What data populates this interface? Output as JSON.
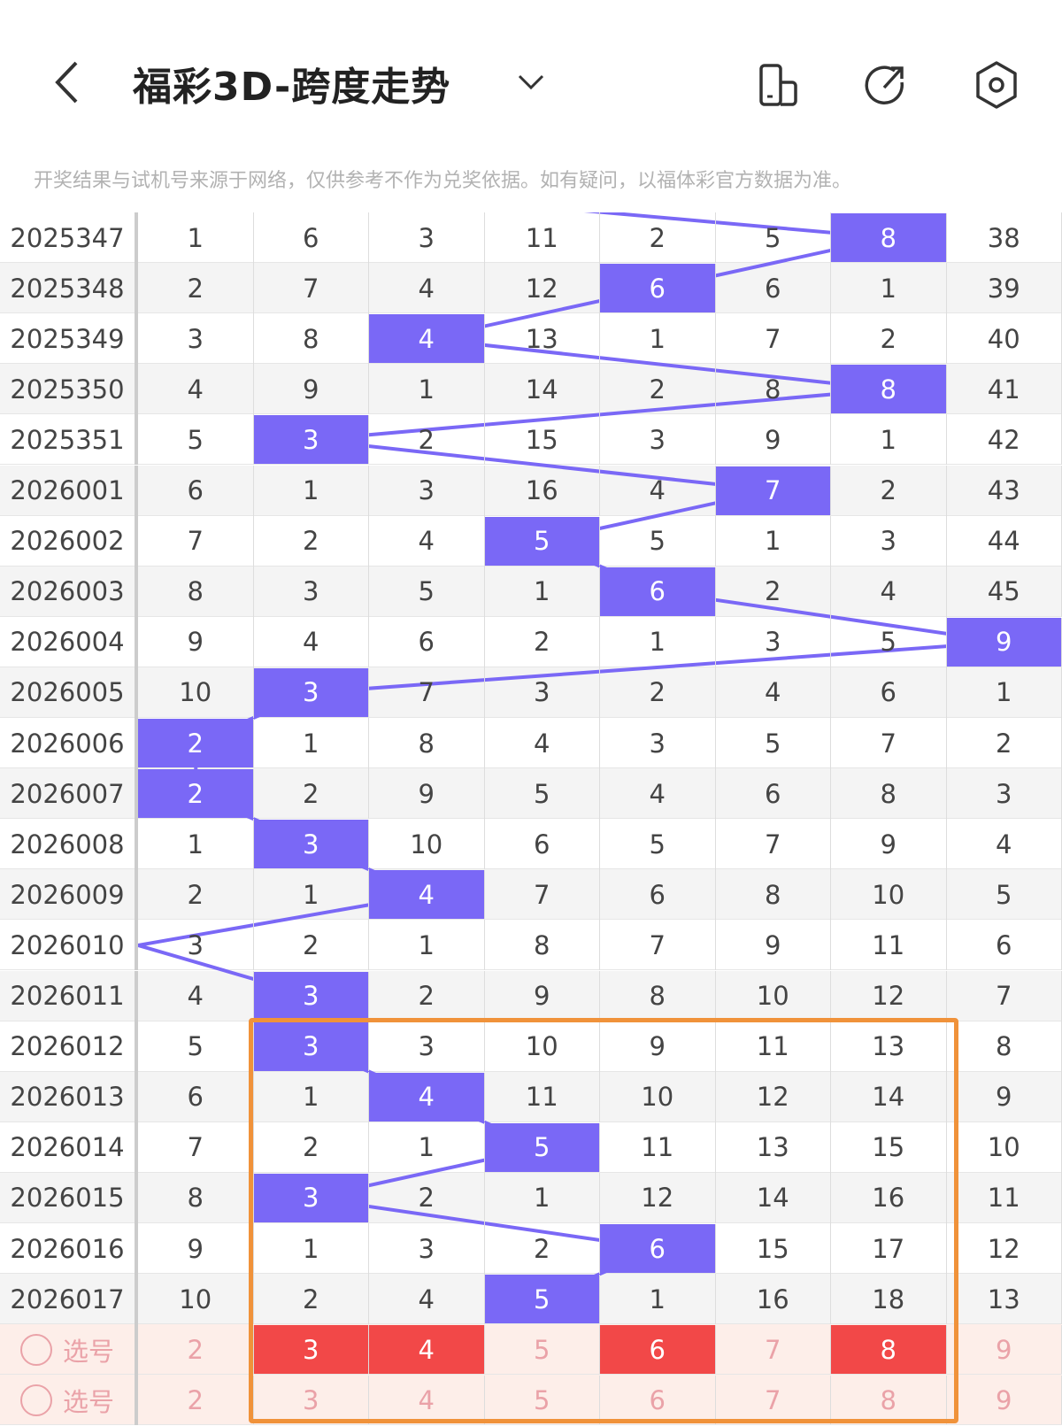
{
  "header": {
    "title": "福彩3D-跨度走势",
    "back_icon": "chevron-left-icon",
    "dropdown_icon": "chevron-down-icon",
    "icons": [
      "phone-layout-icon",
      "share-icon",
      "settings-icon"
    ]
  },
  "notice": "开奖结果与试机号来源于网络，仅供参考不作为兑奖依据。如有疑问，以福体彩官方数据为准。",
  "colors": {
    "hit": "#7a68f6",
    "line": "#7a68f6",
    "select_hit": "#f24848",
    "select_text": "#eaa2a8",
    "select_bg": "#fdeee9",
    "highlight_box": "#f0923a",
    "alt_row": "#f4f4f4"
  },
  "rows": [
    {
      "period": "2025347",
      "values": [
        "1",
        "6",
        "3",
        "11",
        "2",
        "5",
        "8",
        "38"
      ],
      "hit": 6
    },
    {
      "period": "2025348",
      "values": [
        "2",
        "7",
        "4",
        "12",
        "6",
        "6",
        "1",
        "39"
      ],
      "hit": 4
    },
    {
      "period": "2025349",
      "values": [
        "3",
        "8",
        "4",
        "13",
        "1",
        "7",
        "2",
        "40"
      ],
      "hit": 2
    },
    {
      "period": "2025350",
      "values": [
        "4",
        "9",
        "1",
        "14",
        "2",
        "8",
        "8",
        "41"
      ],
      "hit": 6
    },
    {
      "period": "2025351",
      "values": [
        "5",
        "3",
        "2",
        "15",
        "3",
        "9",
        "1",
        "42"
      ],
      "hit": 1
    },
    {
      "period": "2026001",
      "values": [
        "6",
        "1",
        "3",
        "16",
        "4",
        "7",
        "2",
        "43"
      ],
      "hit": 5
    },
    {
      "period": "2026002",
      "values": [
        "7",
        "2",
        "4",
        "5",
        "5",
        "1",
        "3",
        "44"
      ],
      "hit": 3
    },
    {
      "period": "2026003",
      "values": [
        "8",
        "3",
        "5",
        "1",
        "6",
        "2",
        "4",
        "45"
      ],
      "hit": 4
    },
    {
      "period": "2026004",
      "values": [
        "9",
        "4",
        "6",
        "2",
        "1",
        "3",
        "5",
        "9"
      ],
      "hit": 7
    },
    {
      "period": "2026005",
      "values": [
        "10",
        "3",
        "7",
        "3",
        "2",
        "4",
        "6",
        "1"
      ],
      "hit": 1
    },
    {
      "period": "2026006",
      "values": [
        "2",
        "1",
        "8",
        "4",
        "3",
        "5",
        "7",
        "2"
      ],
      "hit": 0
    },
    {
      "period": "2026007",
      "values": [
        "2",
        "2",
        "9",
        "5",
        "4",
        "6",
        "8",
        "3"
      ],
      "hit": 0
    },
    {
      "period": "2026008",
      "values": [
        "1",
        "3",
        "10",
        "6",
        "5",
        "7",
        "9",
        "4"
      ],
      "hit": 1
    },
    {
      "period": "2026009",
      "values": [
        "2",
        "1",
        "4",
        "7",
        "6",
        "8",
        "10",
        "5"
      ],
      "hit": 2
    },
    {
      "period": "2026010",
      "values": [
        "3",
        "2",
        "1",
        "8",
        "7",
        "9",
        "11",
        "6"
      ],
      "hit": null
    },
    {
      "period": "2026011",
      "values": [
        "4",
        "3",
        "2",
        "9",
        "8",
        "10",
        "12",
        "7"
      ],
      "hit": 1
    },
    {
      "period": "2026012",
      "values": [
        "5",
        "3",
        "3",
        "10",
        "9",
        "11",
        "13",
        "8"
      ],
      "hit": 1
    },
    {
      "period": "2026013",
      "values": [
        "6",
        "1",
        "4",
        "11",
        "10",
        "12",
        "14",
        "9"
      ],
      "hit": 2
    },
    {
      "period": "2026014",
      "values": [
        "7",
        "2",
        "1",
        "5",
        "11",
        "13",
        "15",
        "10"
      ],
      "hit": 3
    },
    {
      "period": "2026015",
      "values": [
        "8",
        "3",
        "2",
        "1",
        "12",
        "14",
        "16",
        "11"
      ],
      "hit": 1
    },
    {
      "period": "2026016",
      "values": [
        "9",
        "1",
        "3",
        "2",
        "6",
        "15",
        "17",
        "12"
      ],
      "hit": 4
    },
    {
      "period": "2026017",
      "values": [
        "10",
        "2",
        "4",
        "5",
        "1",
        "16",
        "18",
        "13"
      ],
      "hit": 3
    }
  ],
  "select_rows": [
    {
      "label": "选号",
      "values": [
        "2",
        "3",
        "4",
        "5",
        "6",
        "7",
        "8",
        "9"
      ],
      "selected": [
        1,
        2,
        4,
        6
      ]
    },
    {
      "label": "选号",
      "values": [
        "2",
        "3",
        "4",
        "5",
        "6",
        "7",
        "8",
        "9"
      ],
      "selected": []
    }
  ]
}
